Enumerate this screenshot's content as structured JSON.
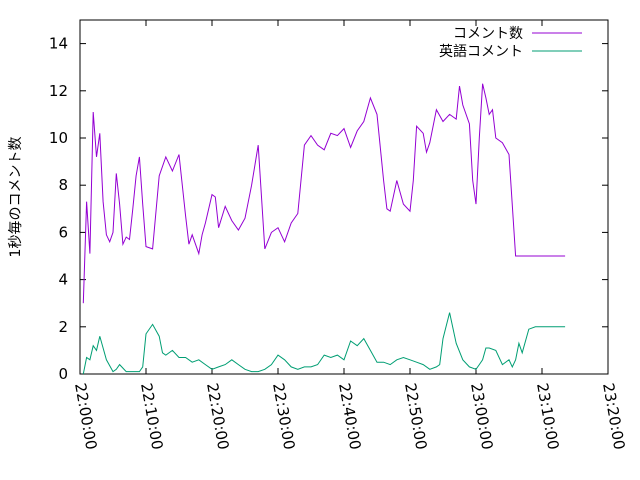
{
  "chart_data": {
    "type": "line",
    "title": "",
    "xlabel": "",
    "ylabel": "1秒毎のコメント数",
    "xlim": [
      "22:00:00",
      "23:20:00"
    ],
    "ylim": [
      0,
      15
    ],
    "x_ticks": [
      "22:00:00",
      "22:10:00",
      "22:20:00",
      "22:30:00",
      "22:40:00",
      "22:50:00",
      "23:00:00",
      "23:10:00",
      "23:20:00"
    ],
    "y_ticks": [
      0,
      2,
      4,
      6,
      8,
      10,
      12,
      14
    ],
    "grid": false,
    "legend_position": "top-right",
    "series": [
      {
        "name": "コメント数",
        "color": "#9400d3",
        "x": [
          "22:00:30",
          "22:01:00",
          "22:01:30",
          "22:02:00",
          "22:02:30",
          "22:03:00",
          "22:03:30",
          "22:04:00",
          "22:04:30",
          "22:05:00",
          "22:05:30",
          "22:06:00",
          "22:06:30",
          "22:07:00",
          "22:07:30",
          "22:08:00",
          "22:08:30",
          "22:09:00",
          "22:09:30",
          "22:10:00",
          "22:11:00",
          "22:12:00",
          "22:13:00",
          "22:14:00",
          "22:15:00",
          "22:16:00",
          "22:16:30",
          "22:17:00",
          "22:18:00",
          "22:18:30",
          "22:19:00",
          "22:20:00",
          "22:20:30",
          "22:21:00",
          "22:22:00",
          "22:23:00",
          "22:24:00",
          "22:25:00",
          "22:26:00",
          "22:27:00",
          "22:28:00",
          "22:29:00",
          "22:30:00",
          "22:31:00",
          "22:32:00",
          "22:33:00",
          "22:34:00",
          "22:35:00",
          "22:36:00",
          "22:37:00",
          "22:38:00",
          "22:39:00",
          "22:40:00",
          "22:41:00",
          "22:42:00",
          "22:43:00",
          "22:44:00",
          "22:45:00",
          "22:46:00",
          "22:46:30",
          "22:47:00",
          "22:48:00",
          "22:49:00",
          "22:50:00",
          "22:50:30",
          "22:51:00",
          "22:52:00",
          "22:52:30",
          "22:53:00",
          "22:54:00",
          "22:55:00",
          "22:56:00",
          "22:57:00",
          "22:57:30",
          "22:58:00",
          "22:59:00",
          "22:59:30",
          "23:00:00",
          "23:00:30",
          "23:01:00",
          "23:01:30",
          "23:02:00",
          "23:02:30",
          "23:03:00",
          "23:04:00",
          "23:05:00",
          "23:06:00",
          "23:06:30",
          "23:07:00",
          "23:08:00",
          "23:09:00",
          "23:10:00",
          "23:11:00",
          "23:11:30",
          "23:12:00",
          "23:13:00",
          "23:13:30"
        ],
        "values": [
          3.0,
          7.3,
          5.1,
          11.1,
          9.2,
          10.2,
          7.3,
          5.9,
          5.6,
          6.0,
          8.5,
          7.2,
          5.5,
          5.8,
          5.7,
          7.0,
          8.4,
          9.2,
          7.2,
          5.4,
          5.3,
          8.4,
          9.2,
          8.6,
          9.3,
          6.7,
          5.5,
          5.9,
          5.1,
          5.9,
          6.4,
          7.6,
          7.5,
          6.2,
          7.1,
          6.5,
          6.1,
          6.6,
          8.0,
          9.7,
          5.3,
          6.0,
          6.2,
          5.6,
          6.4,
          6.8,
          9.7,
          10.1,
          9.7,
          9.5,
          10.2,
          10.1,
          10.4,
          9.6,
          10.3,
          10.7,
          11.7,
          11.0,
          8.2,
          7.0,
          6.9,
          8.2,
          7.2,
          6.9,
          8.2,
          10.5,
          10.2,
          9.4,
          9.8,
          11.2,
          10.7,
          11.0,
          10.8,
          12.2,
          11.4,
          10.6,
          8.2,
          7.2,
          10.0,
          12.3,
          11.7,
          11.0,
          11.2,
          10.0,
          9.8,
          9.3,
          5.0,
          5.0,
          5.0,
          5.0,
          5.0,
          5.0,
          5.0,
          5.0,
          5.0,
          5.0,
          5.0
        ]
      },
      {
        "name": "英語コメント",
        "color": "#009e73",
        "x": [
          "22:00:30",
          "22:01:00",
          "22:01:30",
          "22:02:00",
          "22:02:30",
          "22:03:00",
          "22:03:30",
          "22:04:00",
          "22:05:00",
          "22:05:30",
          "22:06:00",
          "22:07:00",
          "22:08:00",
          "22:09:00",
          "22:09:30",
          "22:10:00",
          "22:11:00",
          "22:12:00",
          "22:12:30",
          "22:13:00",
          "22:14:00",
          "22:15:00",
          "22:16:00",
          "22:17:00",
          "22:18:00",
          "22:19:00",
          "22:20:00",
          "22:21:00",
          "22:22:00",
          "22:23:00",
          "22:24:00",
          "22:25:00",
          "22:26:00",
          "22:27:00",
          "22:28:00",
          "22:29:00",
          "22:30:00",
          "22:31:00",
          "22:32:00",
          "22:33:00",
          "22:34:00",
          "22:35:00",
          "22:36:00",
          "22:37:00",
          "22:38:00",
          "22:39:00",
          "22:40:00",
          "22:41:00",
          "22:42:00",
          "22:43:00",
          "22:44:00",
          "22:45:00",
          "22:46:00",
          "22:47:00",
          "22:48:00",
          "22:49:00",
          "22:50:00",
          "22:51:00",
          "22:52:00",
          "22:53:00",
          "22:54:00",
          "22:54:30",
          "22:55:00",
          "22:56:00",
          "22:57:00",
          "22:58:00",
          "22:59:00",
          "23:00:00",
          "23:00:30",
          "23:01:00",
          "23:01:30",
          "23:02:00",
          "23:03:00",
          "23:04:00",
          "23:05:00",
          "23:05:30",
          "23:06:00",
          "23:06:30",
          "23:07:00",
          "23:08:00",
          "23:09:00",
          "23:10:00",
          "23:11:00",
          "23:11:30",
          "23:12:00",
          "23:13:00",
          "23:13:30"
        ],
        "values": [
          0.0,
          0.7,
          0.6,
          1.2,
          1.0,
          1.6,
          1.1,
          0.6,
          0.1,
          0.2,
          0.4,
          0.1,
          0.1,
          0.1,
          0.3,
          1.7,
          2.1,
          1.6,
          0.9,
          0.8,
          1.0,
          0.7,
          0.7,
          0.5,
          0.6,
          0.4,
          0.2,
          0.3,
          0.4,
          0.6,
          0.4,
          0.2,
          0.1,
          0.1,
          0.2,
          0.4,
          0.8,
          0.6,
          0.3,
          0.2,
          0.3,
          0.3,
          0.4,
          0.8,
          0.7,
          0.8,
          0.6,
          1.4,
          1.2,
          1.5,
          1.0,
          0.5,
          0.5,
          0.4,
          0.6,
          0.7,
          0.6,
          0.5,
          0.4,
          0.2,
          0.3,
          0.4,
          1.5,
          2.6,
          1.3,
          0.6,
          0.3,
          0.2,
          0.4,
          0.6,
          1.1,
          1.1,
          1.0,
          0.4,
          0.6,
          0.3,
          0.6,
          1.3,
          0.9,
          1.9,
          2.0,
          2.0,
          2.0,
          2.0,
          2.0,
          2.0,
          2.0
        ]
      }
    ]
  }
}
